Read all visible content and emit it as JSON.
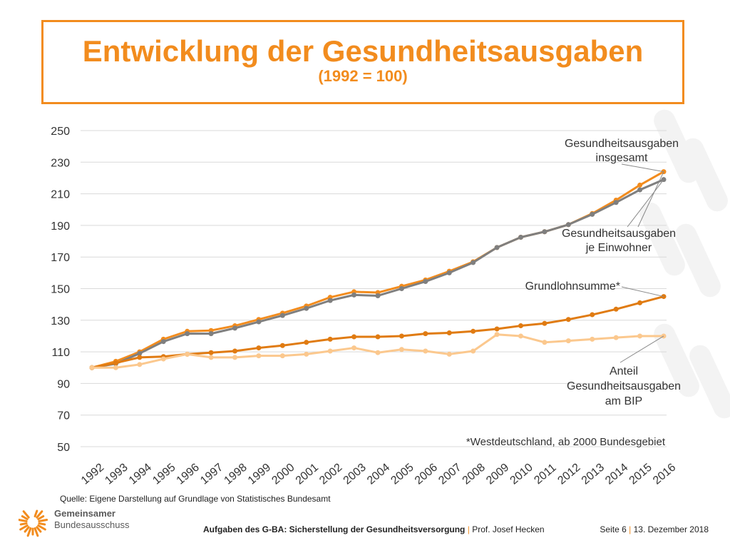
{
  "slide": {
    "title": "Entwicklung der Gesundheitsausgaben",
    "subtitle": "(1992 = 100)",
    "source": "Quelle: Eigene Darstellung auf Grundlage von Statistisches Bundesamt",
    "footer_title": "Aufgaben des G-BA: Sicherstellung der Gesundheitsversorgung",
    "footer_sep": "|",
    "footer_author": "Prof. Josef Hecken",
    "page": "Seite 6",
    "date": "13. Dezember 2018",
    "logo_line1": "Gemeinsamer",
    "logo_line2": "Bundesausschuss"
  },
  "colors": {
    "accent": "#f28c1e",
    "grid": "#d9d9d9",
    "gesamt": "#f28c1e",
    "einwohner": "#7f7f7f",
    "grundlohn": "#e07b12",
    "bip": "#fbc88e"
  },
  "chart_data": {
    "type": "line",
    "x": [
      "1992",
      "1993",
      "1994",
      "1995",
      "1996",
      "1997",
      "1998",
      "1999",
      "2000",
      "2001",
      "2002",
      "2003",
      "2004",
      "2005",
      "2006",
      "2007",
      "2008",
      "2009",
      "2010",
      "2011",
      "2012",
      "2013",
      "2014",
      "2015",
      "2016"
    ],
    "ylim": [
      50,
      250
    ],
    "yticks": [
      50,
      70,
      90,
      110,
      130,
      150,
      170,
      190,
      210,
      230,
      250
    ],
    "grid": true,
    "series": [
      {
        "name": "Gesundheitsausgaben insgesamt",
        "color_key": "gesamt",
        "values": [
          100,
          104,
          110,
          118,
          123,
          123.5,
          126.5,
          130.5,
          134.5,
          139,
          144.5,
          148,
          147.5,
          151.5,
          155.5,
          161,
          167,
          176,
          182.5,
          186,
          190.5,
          197.5,
          206,
          215.5,
          224
        ]
      },
      {
        "name": "Gesundheitsausgaben je Einwohner",
        "color_key": "einwohner",
        "values": [
          100,
          102.5,
          109,
          116.5,
          121.5,
          121.5,
          125,
          129,
          133,
          137.5,
          142.5,
          146,
          145.5,
          150,
          154.5,
          160,
          166.5,
          176,
          182.5,
          186,
          190.5,
          197,
          204.5,
          212.5,
          219
        ]
      },
      {
        "name": "Grundlohnsumme*",
        "color_key": "grundlohn",
        "values": [
          100,
          103,
          106.5,
          107,
          108.5,
          109.5,
          110.5,
          112.5,
          114,
          116,
          118,
          119.5,
          119.5,
          120,
          121.5,
          122,
          123,
          124.5,
          126.5,
          128,
          130.5,
          133.5,
          137,
          141,
          145
        ]
      },
      {
        "name": "Anteil Gesundheitsausgaben am BIP",
        "color_key": "bip",
        "values": [
          100,
          100,
          102,
          105.5,
          108.5,
          106.5,
          106.5,
          107.5,
          107.5,
          108.5,
          110.5,
          112.5,
          109.5,
          111.5,
          110.5,
          108.5,
          110.5,
          121,
          120,
          116,
          117,
          118,
          119,
          120,
          120
        ]
      }
    ],
    "annotations": [
      {
        "lines": [
          "Gesundheitsausgaben",
          "insgesamt"
        ]
      },
      {
        "lines": [
          "Gesundheitsausgaben",
          "je Einwohner"
        ]
      },
      {
        "lines": [
          "Grundlohnsumme*"
        ]
      },
      {
        "lines": [
          "Anteil",
          "Gesundheitsausgaben",
          "am BIP"
        ]
      }
    ],
    "footnote": "*Westdeutschland, ab 2000 Bundesgebiet"
  }
}
